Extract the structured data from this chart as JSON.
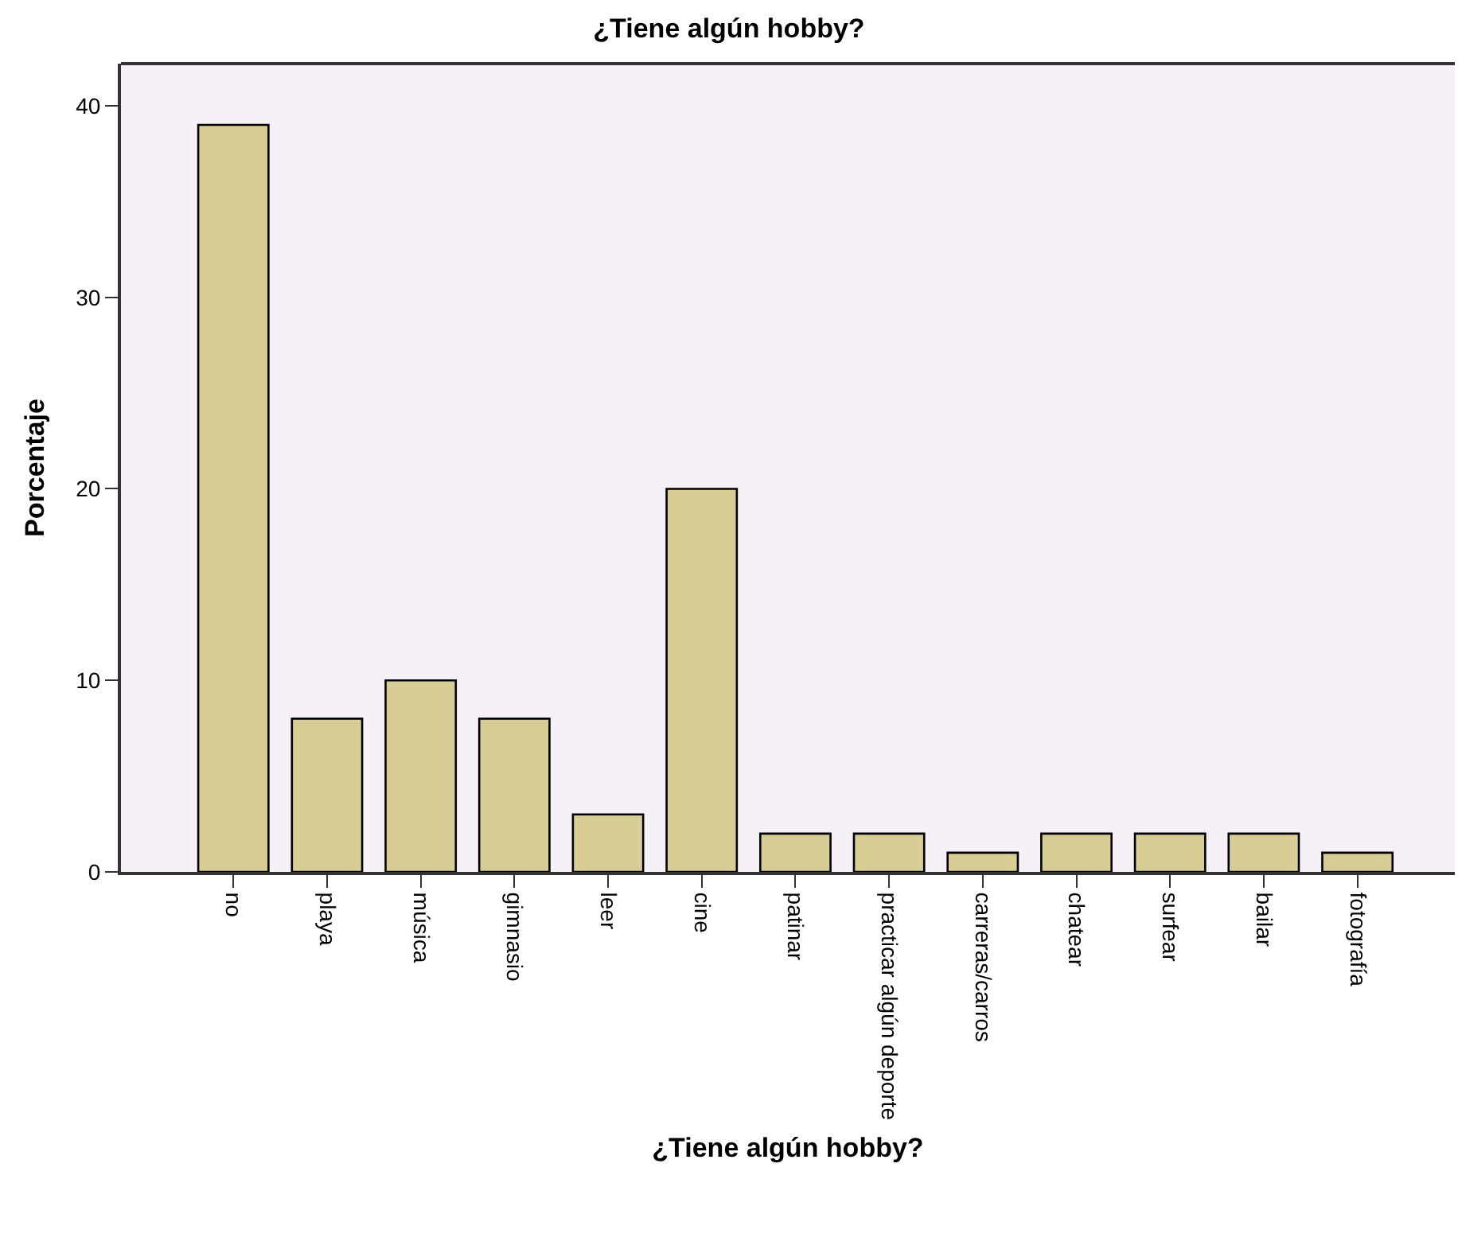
{
  "chart_data": {
    "type": "bar",
    "title": "¿Tiene algún hobby?",
    "xlabel": "¿Tiene algún hobby?",
    "ylabel": "Porcentaje",
    "categories": [
      "no",
      "playa",
      "música",
      "gimnasio",
      "leer",
      "cine",
      "patinar",
      "practicar algún deporte",
      "carreras/carros",
      "chatear",
      "surfear",
      "bailar",
      "fotografía"
    ],
    "values": [
      39,
      8,
      10,
      8,
      3,
      20,
      2,
      2,
      1,
      2,
      2,
      2,
      1
    ],
    "color": "#d7cd95",
    "ylim": [
      0,
      42.2
    ],
    "yticks": [
      0,
      10,
      20,
      30,
      40
    ],
    "grid": false,
    "legend": false
  }
}
